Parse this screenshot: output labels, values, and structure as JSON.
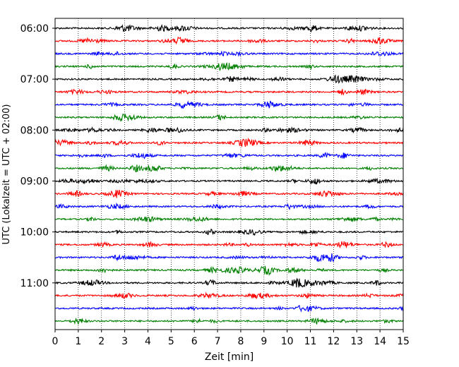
{
  "chart_data": {
    "type": "line",
    "title": "",
    "xlabel": "Zeit  [min]",
    "ylabel": "UTC (Lokalzeit = UTC + 02:00)",
    "xlim": [
      0,
      15
    ],
    "xticks": [
      "0",
      "1",
      "2",
      "3",
      "4",
      "5",
      "6",
      "7",
      "8",
      "9",
      "10",
      "11",
      "12",
      "13",
      "14",
      "15"
    ],
    "yticks": [
      "06:00",
      "07:00",
      "08:00",
      "09:00",
      "10:00",
      "11:00"
    ],
    "traces_per_hour": 4,
    "trace_minutes": 15,
    "trace_start_times": [
      "06:00",
      "06:15",
      "06:30",
      "06:45",
      "07:00",
      "07:15",
      "07:30",
      "07:45",
      "08:00",
      "08:15",
      "08:30",
      "08:45",
      "09:00",
      "09:15",
      "09:30",
      "09:45",
      "10:00",
      "10:15",
      "10:30",
      "10:45",
      "11:00",
      "11:15",
      "11:30",
      "11:45"
    ],
    "trace_colors": [
      "#000000",
      "#ff0000",
      "#0000ff",
      "#008000"
    ],
    "grid": "vertical dotted at each minute",
    "legend": "none"
  }
}
